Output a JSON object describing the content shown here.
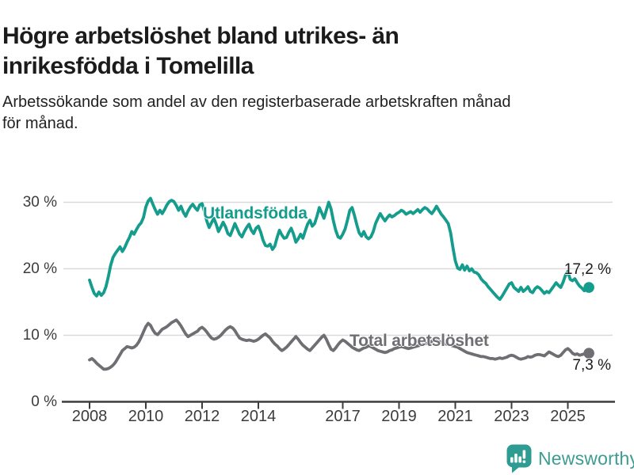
{
  "header": {
    "title_lines": [
      "Högre arbetslöshet bland utrikes- än",
      "inrikesfödda i Tomelilla"
    ],
    "subtitle_lines": [
      "Arbetssökande som andel av den registerbaserade arbetskraften månad",
      "för månad."
    ]
  },
  "footer": {
    "brand": "Newsworthy",
    "brand_text_color": "#3C9C94",
    "brand_icon_color": "#2E9C92",
    "brand_icon": "speech-bubble-bar-chart"
  },
  "chart_data": {
    "type": "line",
    "title": "Högre arbetslöshet bland utrikes- än inrikesfödda i Tomelilla",
    "subtitle": "Arbetssökande som andel av den registerbaserade arbetskraften månad för månad.",
    "x_unit": "month",
    "x_start": "2008-01",
    "x_end": "2025-10",
    "ylim": [
      0,
      32
    ],
    "grid": "horizontal",
    "legend": "inline-labels",
    "gridline_color": "#d9d9d9",
    "axis_color": "#3c3c3c",
    "yticks": [
      {
        "value": 0,
        "label": "0 %"
      },
      {
        "value": 10,
        "label": "10 %"
      },
      {
        "value": 20,
        "label": "20 %"
      },
      {
        "value": 30,
        "label": "30 %"
      }
    ],
    "xticks": [
      {
        "value": 2008,
        "label": "2008"
      },
      {
        "value": 2010,
        "label": "2010"
      },
      {
        "value": 2012,
        "label": "2012"
      },
      {
        "value": 2014,
        "label": "2014"
      },
      {
        "value": 2017,
        "label": "2017"
      },
      {
        "value": 2019,
        "label": "2019"
      },
      {
        "value": 2021,
        "label": "2021"
      },
      {
        "value": 2023,
        "label": "2023"
      },
      {
        "value": 2025,
        "label": "2025"
      }
    ],
    "series": [
      {
        "name": "Utlandsfödda",
        "color": "#149C8C",
        "end_label": "17,2 %",
        "end_value": 17.2,
        "values": [
          18.3,
          17.2,
          16.3,
          15.9,
          16.5,
          16.0,
          16.4,
          17.3,
          18.8,
          20.5,
          21.7,
          22.3,
          22.8,
          23.3,
          22.6,
          23.2,
          24.0,
          24.7,
          25.6,
          25.2,
          25.9,
          26.5,
          26.9,
          27.7,
          29.3,
          30.2,
          30.6,
          29.7,
          28.9,
          28.2,
          28.8,
          28.3,
          28.9,
          29.6,
          30.1,
          30.3,
          30.1,
          29.5,
          28.8,
          29.4,
          28.5,
          27.9,
          28.7,
          29.3,
          29.7,
          29.2,
          28.8,
          29.6,
          29.8,
          28.6,
          27.2,
          26.2,
          26.9,
          27.6,
          26.7,
          25.6,
          26.3,
          27.0,
          26.3,
          25.3,
          25.0,
          25.9,
          26.8,
          26.0,
          25.2,
          24.8,
          25.6,
          26.2,
          26.7,
          25.8,
          25.3,
          26.1,
          26.4,
          25.5,
          24.3,
          23.5,
          23.4,
          23.7,
          22.9,
          23.4,
          24.7,
          25.8,
          25.1,
          24.6,
          24.7,
          25.5,
          26.1,
          25.2,
          24.0,
          24.5,
          25.2,
          24.6,
          25.7,
          26.7,
          27.3,
          26.4,
          26.8,
          27.9,
          29.2,
          28.4,
          27.6,
          28.8,
          30.0,
          29.0,
          27.2,
          25.8,
          24.8,
          24.6,
          25.2,
          26.0,
          27.3,
          28.8,
          29.2,
          28.0,
          26.6,
          25.4,
          24.9,
          25.6,
          24.8,
          24.5,
          24.8,
          25.6,
          26.8,
          27.6,
          28.3,
          27.7,
          27.2,
          27.7,
          28.1,
          27.8,
          28.0,
          28.3,
          28.5,
          28.8,
          28.6,
          28.2,
          28.4,
          28.6,
          28.3,
          28.6,
          28.9,
          28.5,
          28.9,
          29.2,
          29.0,
          28.6,
          28.3,
          28.8,
          29.4,
          28.8,
          28.2,
          27.8,
          27.3,
          26.8,
          25.4,
          23.2,
          21.2,
          20.1,
          19.9,
          20.6,
          19.8,
          20.4,
          19.7,
          20.0,
          19.5,
          19.4,
          19.1,
          18.5,
          18.1,
          17.8,
          17.3,
          16.9,
          16.5,
          16.1,
          15.7,
          15.4,
          15.9,
          16.5,
          17.1,
          17.7,
          17.9,
          17.2,
          16.9,
          16.6,
          17.2,
          16.6,
          16.9,
          17.3,
          16.6,
          16.4,
          17.0,
          17.3,
          17.1,
          16.7,
          16.3,
          16.6,
          16.4,
          16.9,
          17.4,
          17.9,
          17.5,
          17.2,
          18.0,
          19.0,
          19.6,
          18.4,
          18.2,
          18.5,
          17.9,
          17.4,
          17.1,
          16.7,
          16.9,
          17.2
        ]
      },
      {
        "name": "Total arbetslöshet",
        "color": "#6E6E73",
        "end_label": "7,3 %",
        "end_value": 7.3,
        "values": [
          6.3,
          6.5,
          6.2,
          5.8,
          5.5,
          5.2,
          4.9,
          4.9,
          5.0,
          5.2,
          5.5,
          5.9,
          6.5,
          7.1,
          7.7,
          8.0,
          8.3,
          8.2,
          8.1,
          8.2,
          8.5,
          9.0,
          9.7,
          10.5,
          11.3,
          11.8,
          11.5,
          10.8,
          10.3,
          10.1,
          10.5,
          10.9,
          11.1,
          11.3,
          11.6,
          11.9,
          12.1,
          12.3,
          11.9,
          11.4,
          10.8,
          10.2,
          9.8,
          10.0,
          10.2,
          10.4,
          10.6,
          11.0,
          11.2,
          10.9,
          10.5,
          10.0,
          9.6,
          9.4,
          9.5,
          9.7,
          10.0,
          10.4,
          10.8,
          11.1,
          11.3,
          11.1,
          10.7,
          10.1,
          9.6,
          9.4,
          9.3,
          9.2,
          9.3,
          9.2,
          9.1,
          9.2,
          9.4,
          9.7,
          10.0,
          10.2,
          9.9,
          9.6,
          9.1,
          8.7,
          8.4,
          8.0,
          7.7,
          7.9,
          8.2,
          8.6,
          9.0,
          9.4,
          9.8,
          9.4,
          8.9,
          8.5,
          8.2,
          7.9,
          7.7,
          8.1,
          8.5,
          8.9,
          9.3,
          9.7,
          10.0,
          9.4,
          8.6,
          7.9,
          7.7,
          8.1,
          8.6,
          9.0,
          9.3,
          9.1,
          8.8,
          8.5,
          8.2,
          8.0,
          7.8,
          7.7,
          7.9,
          8.1,
          8.2,
          8.4,
          8.3,
          8.1,
          7.9,
          7.7,
          7.6,
          7.5,
          7.4,
          7.5,
          7.7,
          7.8,
          8.0,
          8.1,
          8.2,
          8.3,
          8.2,
          8.1,
          8.0,
          8.1,
          8.2,
          8.3,
          8.4,
          8.5,
          8.6,
          8.7,
          8.8,
          8.9,
          9.1,
          9.4,
          9.3,
          9.1,
          8.9,
          8.8,
          8.7,
          8.6,
          8.5,
          8.4,
          8.3,
          8.2,
          8.0,
          7.8,
          7.6,
          7.4,
          7.3,
          7.2,
          7.1,
          7.0,
          6.9,
          6.8,
          6.8,
          6.7,
          6.6,
          6.5,
          6.5,
          6.4,
          6.5,
          6.6,
          6.5,
          6.6,
          6.7,
          6.9,
          7.0,
          6.9,
          6.7,
          6.5,
          6.4,
          6.5,
          6.6,
          6.8,
          6.7,
          6.8,
          7.0,
          7.1,
          7.1,
          7.0,
          6.9,
          7.2,
          7.5,
          7.3,
          7.1,
          6.9,
          6.8,
          7.0,
          7.4,
          7.8,
          8.0,
          7.7,
          7.3,
          7.1,
          7.2,
          7.0,
          7.1,
          7.2,
          7.2,
          7.3
        ]
      }
    ]
  }
}
